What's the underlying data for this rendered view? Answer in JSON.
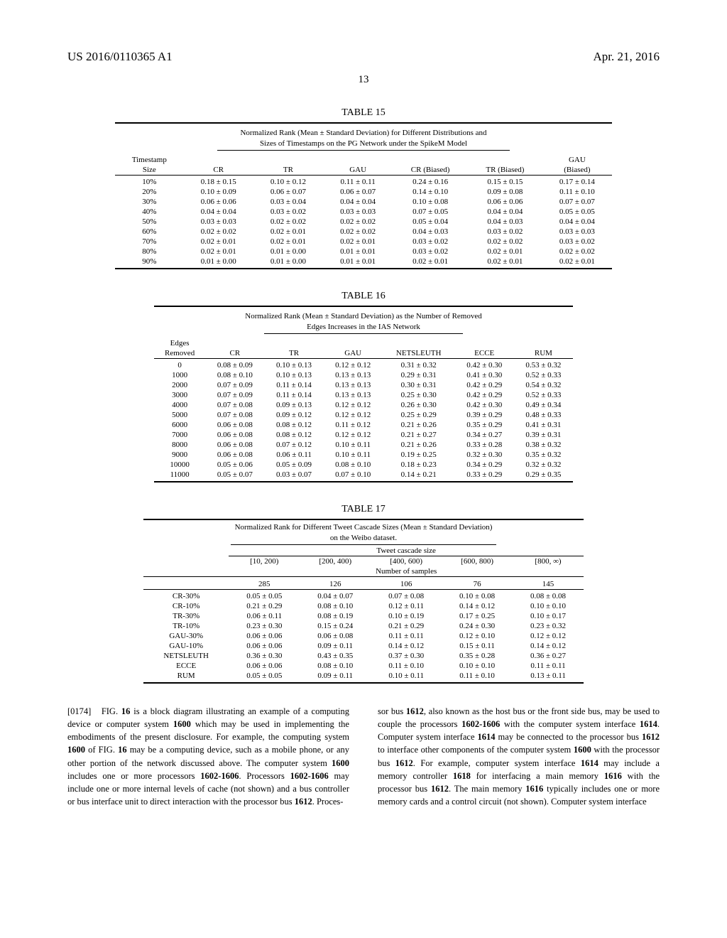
{
  "header": {
    "pub": "US 2016/0110365 A1",
    "date": "Apr. 21, 2016",
    "page_no": "13"
  },
  "t15": {
    "label": "TABLE 15",
    "caption1": "Normalized Rank (Mean ± Standard Deviation) for Different Distributions and",
    "caption2": "Sizes of Timestamps on the PG Network under the SpikeM Model",
    "col0": "Timestamp",
    "col0b": "Size",
    "cols": [
      "CR",
      "TR",
      "GAU",
      "CR (Biased)",
      "TR (Biased)",
      "GAU"
    ],
    "gau_sub": "(Biased)",
    "rows": [
      {
        "k": "10%",
        "v": [
          "0.18 ± 0.15",
          "0.10 ± 0.12",
          "0.11 ± 0.11",
          "0.24 ± 0.16",
          "0.15 ± 0.15",
          "0.17 ± 0.14"
        ]
      },
      {
        "k": "20%",
        "v": [
          "0.10 ± 0.09",
          "0.06 ± 0.07",
          "0.06 ± 0.07",
          "0.14 ± 0.10",
          "0.09 ± 0.08",
          "0.11 ± 0.10"
        ]
      },
      {
        "k": "30%",
        "v": [
          "0.06 ± 0.06",
          "0.03 ± 0.04",
          "0.04 ± 0.04",
          "0.10 ± 0.08",
          "0.06 ± 0.06",
          "0.07 ± 0.07"
        ]
      },
      {
        "k": "40%",
        "v": [
          "0.04 ± 0.04",
          "0.03 ± 0.02",
          "0.03 ± 0.03",
          "0.07 ± 0.05",
          "0.04 ± 0.04",
          "0.05 ± 0.05"
        ]
      },
      {
        "k": "50%",
        "v": [
          "0.03 ± 0.03",
          "0.02 ± 0.02",
          "0.02 ± 0.02",
          "0.05 ± 0.04",
          "0.04 ± 0.03",
          "0.04 ± 0.04"
        ]
      },
      {
        "k": "60%",
        "v": [
          "0.02 ± 0.02",
          "0.02 ± 0.01",
          "0.02 ± 0.02",
          "0.04 ± 0.03",
          "0.03 ± 0.02",
          "0.03 ± 0.03"
        ]
      },
      {
        "k": "70%",
        "v": [
          "0.02 ± 0.01",
          "0.02 ± 0.01",
          "0.02 ± 0.01",
          "0.03 ± 0.02",
          "0.02 ± 0.02",
          "0.03 ± 0.02"
        ]
      },
      {
        "k": "80%",
        "v": [
          "0.02 ± 0.01",
          "0.01 ± 0.00",
          "0.01 ± 0.01",
          "0.03 ± 0.02",
          "0.02 ± 0.01",
          "0.02 ± 0.02"
        ]
      },
      {
        "k": "90%",
        "v": [
          "0.01 ± 0.00",
          "0.01 ± 0.00",
          "0.01 ± 0.01",
          "0.02 ± 0.01",
          "0.02 ± 0.01",
          "0.02 ± 0.01"
        ]
      }
    ]
  },
  "t16": {
    "label": "TABLE 16",
    "caption1": "Normalized Rank (Mean ± Standard Deviation) as the Number of Removed",
    "caption2": "Edges Increases in the IAS Network",
    "col0": "Edges",
    "col0b": "Removed",
    "cols": [
      "CR",
      "TR",
      "GAU",
      "NETSLEUTH",
      "ECCE",
      "RUM"
    ],
    "rows": [
      {
        "k": "0",
        "v": [
          "0.08 ± 0.09",
          "0.10 ± 0.13",
          "0.12 ± 0.12",
          "0.31 ± 0.32",
          "0.42 ± 0.30",
          "0.53 ± 0.32"
        ]
      },
      {
        "k": "1000",
        "v": [
          "0.08 ± 0.10",
          "0.10 ± 0.13",
          "0.13 ± 0.13",
          "0.29 ± 0.31",
          "0.41 ± 0.30",
          "0.52 ± 0.33"
        ]
      },
      {
        "k": "2000",
        "v": [
          "0.07 ± 0.09",
          "0.11 ± 0.14",
          "0.13 ± 0.13",
          "0.30 ± 0.31",
          "0.42 ± 0.29",
          "0.54 ± 0.32"
        ]
      },
      {
        "k": "3000",
        "v": [
          "0.07 ± 0.09",
          "0.11 ± 0.14",
          "0.13 ± 0.13",
          "0.25 ± 0.30",
          "0.42 ± 0.29",
          "0.52 ± 0.33"
        ]
      },
      {
        "k": "4000",
        "v": [
          "0.07 ± 0.08",
          "0.09 ± 0.13",
          "0.12 ± 0.12",
          "0.26 ± 0.30",
          "0.42 ± 0.30",
          "0.49 ± 0.34"
        ]
      },
      {
        "k": "5000",
        "v": [
          "0.07 ± 0.08",
          "0.09 ± 0.12",
          "0.12 ± 0.12",
          "0.25 ± 0.29",
          "0.39 ± 0.29",
          "0.48 ± 0.33"
        ]
      },
      {
        "k": "6000",
        "v": [
          "0.06 ± 0.08",
          "0.08 ± 0.12",
          "0.11 ± 0.12",
          "0.21 ± 0.26",
          "0.35 ± 0.29",
          "0.41 ± 0.31"
        ]
      },
      {
        "k": "7000",
        "v": [
          "0.06 ± 0.08",
          "0.08 ± 0.12",
          "0.12 ± 0.12",
          "0.21 ± 0.27",
          "0.34 ± 0.27",
          "0.39 ± 0.31"
        ]
      },
      {
        "k": "8000",
        "v": [
          "0.06 ± 0.08",
          "0.07 ± 0.12",
          "0.10 ± 0.11",
          "0.21 ± 0.26",
          "0.33 ± 0.28",
          "0.38 ± 0.32"
        ]
      },
      {
        "k": "9000",
        "v": [
          "0.06 ± 0.08",
          "0.06 ± 0.11",
          "0.10 ± 0.11",
          "0.19 ± 0.25",
          "0.32 ± 0.30",
          "0.35 ± 0.32"
        ]
      },
      {
        "k": "10000",
        "v": [
          "0.05 ± 0.06",
          "0.05 ± 0.09",
          "0.08 ± 0.10",
          "0.18 ± 0.23",
          "0.34 ± 0.29",
          "0.32 ± 0.32"
        ]
      },
      {
        "k": "11000",
        "v": [
          "0.05 ± 0.07",
          "0.03 ± 0.07",
          "0.07 ± 0.10",
          "0.14 ± 0.21",
          "0.33 ± 0.29",
          "0.29 ± 0.35"
        ]
      }
    ]
  },
  "t17": {
    "label": "TABLE 17",
    "caption1": "Normalized Rank for Different Tweet Cascade Sizes (Mean ± Standard Deviation)",
    "caption2": "on the Weibo dataset.",
    "span_header": "Tweet cascade size",
    "bins": [
      "[10, 200)",
      "[200, 400)",
      "[400, 600)",
      "[600, 800)",
      "[800, ∞)"
    ],
    "samples_label": "Number of samples",
    "samples": [
      "285",
      "126",
      "106",
      "76",
      "145"
    ],
    "rows": [
      {
        "k": "CR-30%",
        "v": [
          "0.05 ± 0.05",
          "0.04 ± 0.07",
          "0.07 ± 0.08",
          "0.10 ± 0.08",
          "0.08 ± 0.08"
        ]
      },
      {
        "k": "CR-10%",
        "v": [
          "0.21 ± 0.29",
          "0.08 ± 0.10",
          "0.12 ± 0.11",
          "0.14 ± 0.12",
          "0.10 ± 0.10"
        ]
      },
      {
        "k": "TR-30%",
        "v": [
          "0.06 ± 0.11",
          "0.08 ± 0.19",
          "0.10 ± 0.19",
          "0.17 ± 0.25",
          "0.10 ± 0.17"
        ]
      },
      {
        "k": "TR-10%",
        "v": [
          "0.23 ± 0.30",
          "0.15 ± 0.24",
          "0.21 ± 0.29",
          "0.24 ± 0.30",
          "0.23 ± 0.32"
        ]
      },
      {
        "k": "GAU-30%",
        "v": [
          "0.06 ± 0.06",
          "0.06 ± 0.08",
          "0.11 ± 0.11",
          "0.12 ± 0.10",
          "0.12 ± 0.12"
        ]
      },
      {
        "k": "GAU-10%",
        "v": [
          "0.06 ± 0.06",
          "0.09 ± 0.11",
          "0.14 ± 0.12",
          "0.15 ± 0.11",
          "0.14 ± 0.12"
        ]
      },
      {
        "k": "NETSLEUTH",
        "v": [
          "0.36 ± 0.30",
          "0.43 ± 0.35",
          "0.37 ± 0.30",
          "0.35 ± 0.28",
          "0.36 ± 0.27"
        ]
      },
      {
        "k": "ECCE",
        "v": [
          "0.06 ± 0.06",
          "0.08 ± 0.10",
          "0.11 ± 0.10",
          "0.10 ± 0.10",
          "0.11 ± 0.11"
        ]
      },
      {
        "k": "RUM",
        "v": [
          "0.05 ± 0.05",
          "0.09 ± 0.11",
          "0.10 ± 0.11",
          "0.11 ± 0.10",
          "0.13 ± 0.11"
        ]
      }
    ]
  },
  "body": {
    "left_num": "[0174]",
    "left": "FIG. 16 is a block diagram illustrating an example of a computing device or computer system 1600 which may be used in implementing the embodiments of the present disclosure. For example, the computing system 1600 of FIG. 16 may be a computing device, such as a mobile phone, or any other portion of the network discussed above. The computer system 1600 includes one or more processors 1602-1606. Processors 1602-1606 may include one or more internal levels of cache (not shown) and a bus controller or bus interface unit to direct interaction with the processor bus 1612. Proces-",
    "right": "sor bus 1612, also known as the host bus or the front side bus, may be used to couple the processors 1602-1606 with the computer system interface 1614. Computer system interface 1614 may be connected to the processor bus 1612 to interface other components of the computer system 1600 with the processor bus 1612. For example, computer system interface 1614 may include a memory controller 1618 for interfacing a main memory 1616 with the processor bus 1612. The main memory 1616 typically includes one or more memory cards and a control circuit (not shown). Computer system interface"
  }
}
